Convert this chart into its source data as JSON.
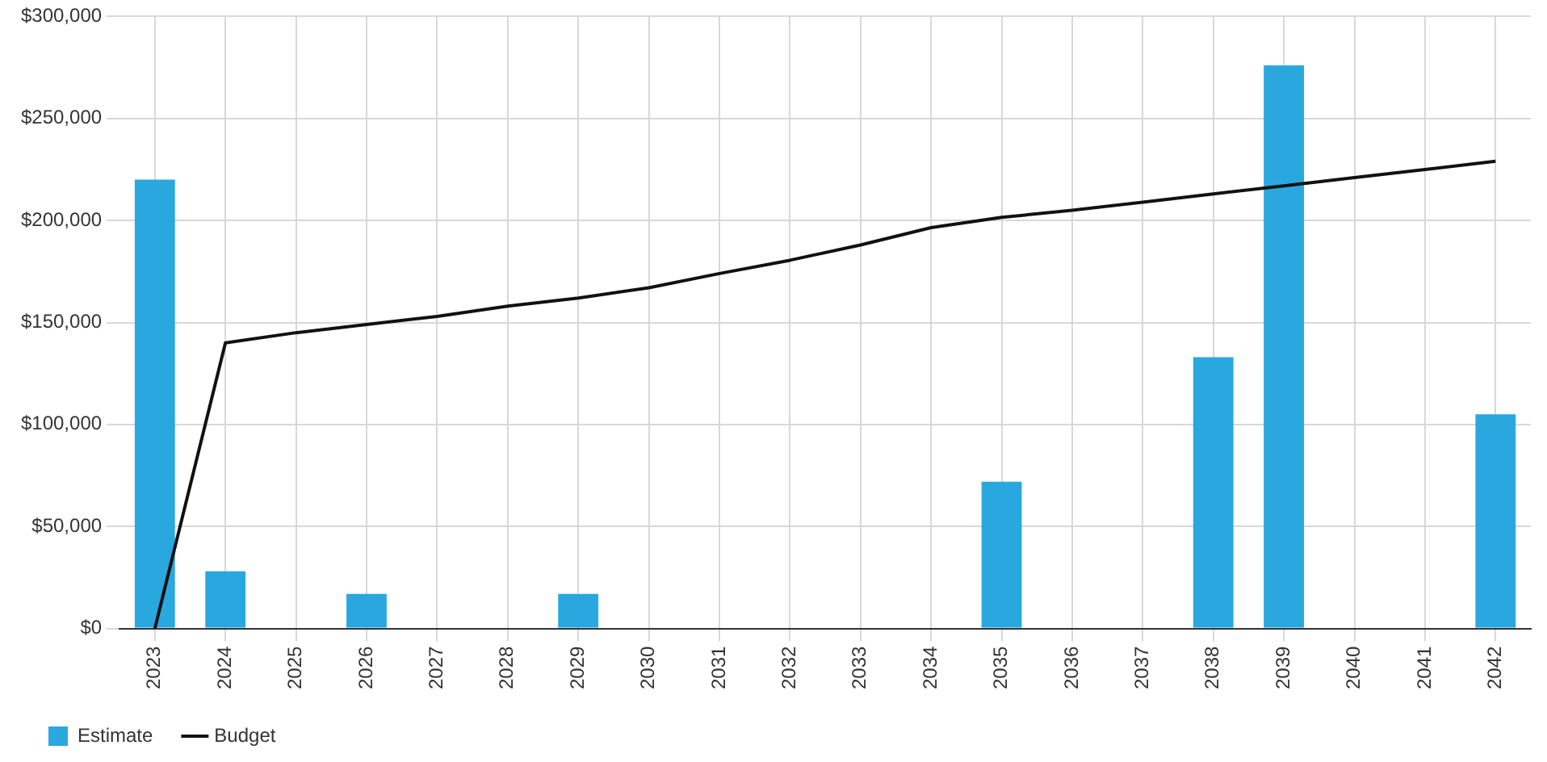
{
  "chart_data": {
    "type": "bar",
    "categories": [
      "2023",
      "2024",
      "2025",
      "2026",
      "2027",
      "2028",
      "2029",
      "2030",
      "2031",
      "2032",
      "2033",
      "2034",
      "2035",
      "2036",
      "2037",
      "2038",
      "2039",
      "2040",
      "2041",
      "2042"
    ],
    "series": [
      {
        "name": "Estimate",
        "color": "#29a8e0",
        "values": [
          220000,
          28000,
          0,
          17000,
          0,
          0,
          17000,
          0,
          0,
          0,
          0,
          0,
          72000,
          0,
          0,
          133000,
          276000,
          0,
          0,
          105000
        ]
      },
      {
        "name": "Budget",
        "type": "line",
        "color": "#111111",
        "values": [
          0,
          140000,
          145000,
          149000,
          153000,
          158000,
          162000,
          167000,
          174000,
          180500,
          188000,
          196500,
          201500,
          205000,
          209000,
          213000,
          217000,
          221000,
          225000,
          229000
        ]
      }
    ],
    "ylim": [
      0,
      300000
    ],
    "yticks": [
      {
        "value": 0,
        "label": "$0"
      },
      {
        "value": 50000,
        "label": "$50,000"
      },
      {
        "value": 100000,
        "label": "$100,000"
      },
      {
        "value": 150000,
        "label": "$150,000"
      },
      {
        "value": 200000,
        "label": "$200,000"
      },
      {
        "value": 250000,
        "label": "$250,000"
      },
      {
        "value": 300000,
        "label": "$300,000"
      }
    ],
    "grid": true,
    "legend": "bottom left",
    "marker": "none",
    "line_style": "solid"
  }
}
